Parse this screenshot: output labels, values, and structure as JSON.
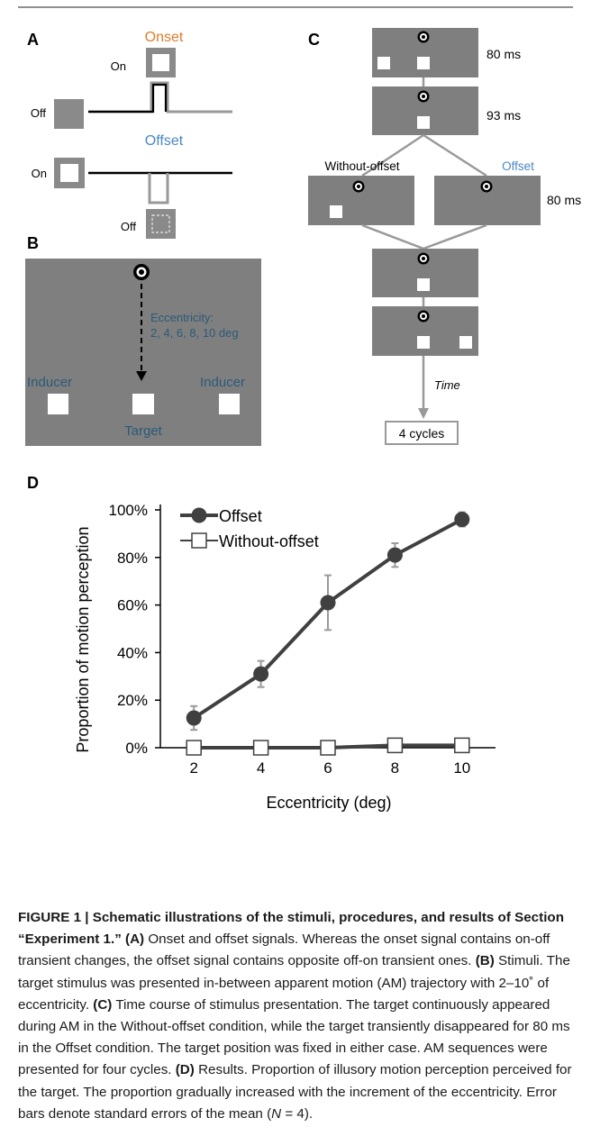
{
  "panel_labels": {
    "a": "A",
    "b": "B",
    "c": "C",
    "d": "D"
  },
  "panel_a": {
    "onset_title": "Onset",
    "offset_title": "Offset",
    "on_label": "On",
    "off_label": "Off",
    "onset_color": "#e07b2a",
    "offset_color": "#4a86c5"
  },
  "panel_b": {
    "eccentricity_line1": "Eccentricity:",
    "eccentricity_line2": "2, 4, 6, 8, 10 deg",
    "inducer_label": "Inducer",
    "target_label": "Target",
    "label_color": "#2b5a78",
    "screen_color": "#7f7f7f"
  },
  "panel_c": {
    "durations": [
      "80 ms",
      "93 ms",
      "80 ms"
    ],
    "without_offset_label": "Without-offset",
    "offset_label": "Offset",
    "time_label": "Time",
    "cycles_label": "4 cycles"
  },
  "chart_data": {
    "type": "line",
    "xlabel": "Eccentricity (deg)",
    "ylabel": "Proportion of motion perception",
    "x": [
      2,
      4,
      6,
      8,
      10
    ],
    "xlim": [
      1,
      11
    ],
    "ylim": [
      0,
      100
    ],
    "yticks": [
      "0%",
      "20%",
      "40%",
      "60%",
      "80%",
      "100%"
    ],
    "xticks": [
      "2",
      "4",
      "6",
      "8",
      "10"
    ],
    "legend_position": "top-left",
    "series": [
      {
        "name": "Offset",
        "marker": "filled-circle",
        "color": "#404040",
        "values": [
          12.5,
          31,
          61,
          81,
          96
        ],
        "errors": [
          5,
          5.5,
          11.5,
          5,
          3
        ]
      },
      {
        "name": "Without-offset",
        "marker": "open-square",
        "color": "#404040",
        "values": [
          0,
          0,
          0,
          1,
          1
        ],
        "errors": [
          0,
          0,
          0,
          0.5,
          0.5
        ]
      }
    ]
  },
  "caption": {
    "fig_label": "FIGURE 1 | Schematic illustrations of the stimuli, procedures, and results of Section “Experiment 1.”",
    "a_tag": "(A)",
    "a_text": " Onset and offset signals. Whereas the onset signal contains on-off transient changes, the offset signal contains opposite off-on transient ones. ",
    "b_tag": "(B)",
    "b_text": " Stimuli. The target stimulus was presented in-between apparent motion (AM) trajectory with 2–10˚ of eccentricity. ",
    "c_tag": "(C)",
    "c_text": " Time course of stimulus presentation. The target continuously appeared during AM in the Without-offset condition, while the target transiently disappeared for 80 ms in the Offset condition. The target position was fixed in either case. AM sequences were presented for four cycles. ",
    "d_tag": "(D)",
    "d_text": " Results. Proportion of illusory motion perception perceived for the target. The proportion gradually increased with the increment of the eccentricity. Error bars denote standard errors of the mean (",
    "n_symbol": "N",
    "n_text": " = 4)."
  }
}
